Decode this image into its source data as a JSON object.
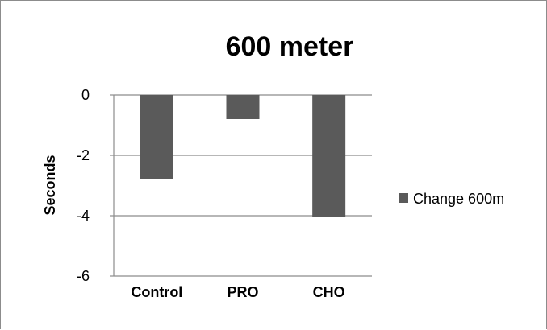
{
  "chart_data": {
    "type": "bar",
    "title": "600 meter",
    "xlabel": "",
    "ylabel": "Seconds",
    "categories": [
      "Control",
      "PRO",
      "CHO"
    ],
    "series": [
      {
        "name": "Change 600m",
        "values": [
          -2.8,
          -0.8,
          -4.05
        ]
      }
    ],
    "ylim": [
      -6,
      0
    ],
    "yticks": [
      "0",
      "-2",
      "-4",
      "-6"
    ],
    "ytick_values": [
      0,
      -2,
      -4,
      -6
    ],
    "grid": true,
    "legend": "right",
    "colors": {
      "bar": "#5a5a5a",
      "grid": "#8c8c8c",
      "axis": "#8c8c8c"
    }
  }
}
